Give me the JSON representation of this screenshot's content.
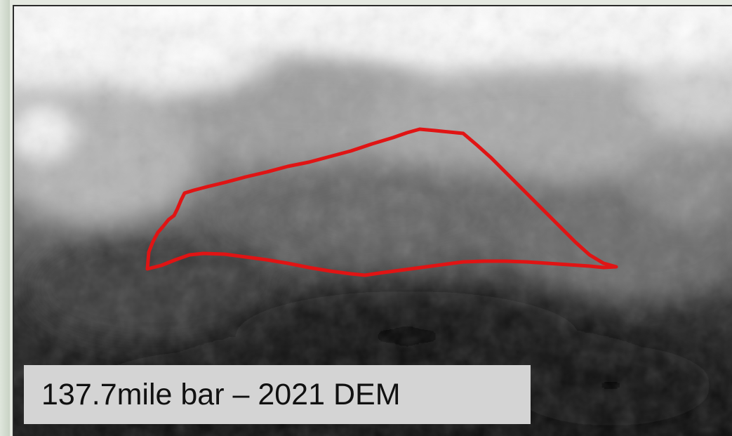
{
  "map": {
    "kind": "digital elevation model (grayscale)",
    "outline_color": "#e01414",
    "caption": "137.7mile bar – 2021 DEM"
  }
}
